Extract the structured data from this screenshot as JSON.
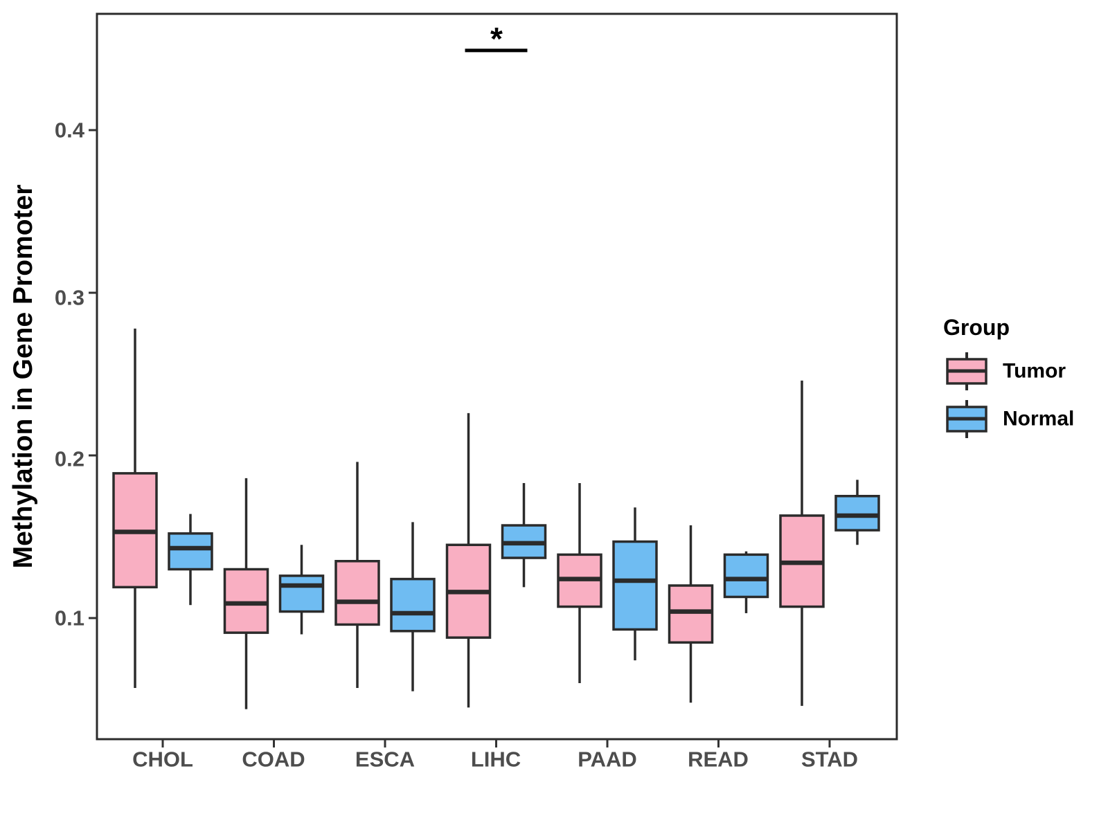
{
  "chart_data": {
    "type": "boxplot",
    "title": "",
    "xlabel": "",
    "ylabel": "Methylation in Gene Promoter",
    "categories": [
      "CHOL",
      "COAD",
      "ESCA",
      "LIHC",
      "PAAD",
      "READ",
      "STAD"
    ],
    "series": [
      {
        "name": "Tumor",
        "color": "#F9AFC2",
        "boxes": [
          {
            "category": "CHOL",
            "whisker_low": 0.057,
            "q1": 0.119,
            "median": 0.153,
            "q3": 0.189,
            "whisker_high": 0.278
          },
          {
            "category": "COAD",
            "whisker_low": 0.044,
            "q1": 0.091,
            "median": 0.109,
            "q3": 0.13,
            "whisker_high": 0.186
          },
          {
            "category": "ESCA",
            "whisker_low": 0.057,
            "q1": 0.096,
            "median": 0.11,
            "q3": 0.135,
            "whisker_high": 0.196
          },
          {
            "category": "LIHC",
            "whisker_low": 0.045,
            "q1": 0.088,
            "median": 0.116,
            "q3": 0.145,
            "whisker_high": 0.226
          },
          {
            "category": "PAAD",
            "whisker_low": 0.06,
            "q1": 0.107,
            "median": 0.124,
            "q3": 0.139,
            "whisker_high": 0.183
          },
          {
            "category": "READ",
            "whisker_low": 0.048,
            "q1": 0.085,
            "median": 0.104,
            "q3": 0.12,
            "whisker_high": 0.157
          },
          {
            "category": "STAD",
            "whisker_low": 0.046,
            "q1": 0.107,
            "median": 0.134,
            "q3": 0.163,
            "whisker_high": 0.246
          }
        ]
      },
      {
        "name": "Normal",
        "color": "#6FBCF2",
        "boxes": [
          {
            "category": "CHOL",
            "whisker_low": 0.108,
            "q1": 0.13,
            "median": 0.143,
            "q3": 0.152,
            "whisker_high": 0.164
          },
          {
            "category": "COAD",
            "whisker_low": 0.09,
            "q1": 0.104,
            "median": 0.12,
            "q3": 0.126,
            "whisker_high": 0.145
          },
          {
            "category": "ESCA",
            "whisker_low": 0.055,
            "q1": 0.092,
            "median": 0.103,
            "q3": 0.124,
            "whisker_high": 0.159
          },
          {
            "category": "LIHC",
            "whisker_low": 0.119,
            "q1": 0.137,
            "median": 0.146,
            "q3": 0.157,
            "whisker_high": 0.183
          },
          {
            "category": "PAAD",
            "whisker_low": 0.074,
            "q1": 0.093,
            "median": 0.123,
            "q3": 0.147,
            "whisker_high": 0.168
          },
          {
            "category": "READ",
            "whisker_low": 0.103,
            "q1": 0.113,
            "median": 0.124,
            "q3": 0.139,
            "whisker_high": 0.141
          },
          {
            "category": "STAD",
            "whisker_low": 0.145,
            "q1": 0.154,
            "median": 0.163,
            "q3": 0.175,
            "whisker_high": 0.185
          }
        ]
      }
    ],
    "ytick_labels": [
      "0.4",
      "0.3",
      "0.2",
      "0.1"
    ],
    "ytick_values": [
      0.4,
      0.3,
      0.2,
      0.1
    ],
    "ylim": [
      0.026,
      0.471
    ],
    "grid": false,
    "legend_position": "right",
    "legend": {
      "title": "Group",
      "items": [
        {
          "label": "Tumor",
          "color": "#F9AFC2"
        },
        {
          "label": "Normal",
          "color": "#6FBCF2"
        }
      ]
    },
    "significance": {
      "label": "*",
      "category": "LIHC",
      "bar_y_value": 0.449,
      "compares": [
        "Tumor",
        "Normal"
      ]
    },
    "line_color": "#2b2b2b"
  }
}
